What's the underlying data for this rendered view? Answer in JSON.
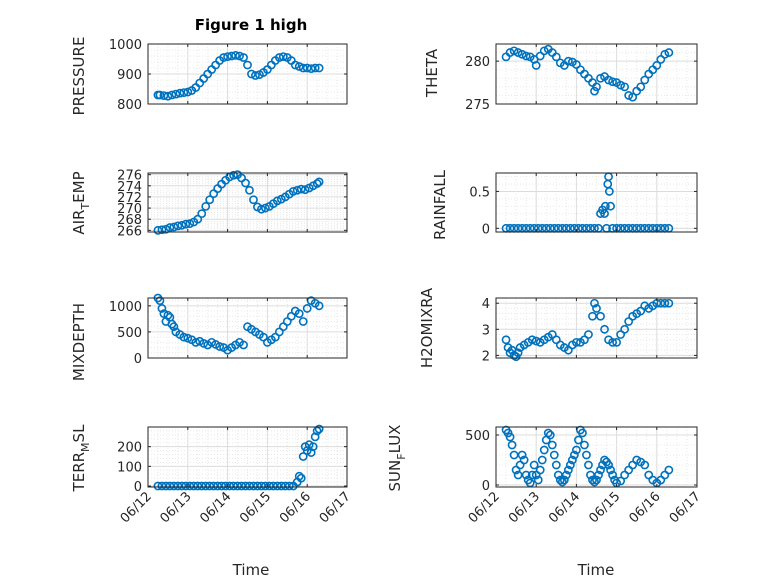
{
  "figure": {
    "title": "Figure 1 high",
    "xlabel": "Time",
    "date_ticks": [
      "06/12",
      "06/13",
      "06/14",
      "06/15",
      "06/16",
      "06/17"
    ],
    "marker_color": "#0072BD"
  },
  "chart_data": [
    {
      "type": "scatter",
      "title": "Figure 1 high",
      "ylabel": "PRESSURE",
      "ylim": [
        800,
        1000
      ],
      "yticks": [
        "800",
        "900",
        "1000"
      ],
      "x": [
        12.25,
        12.3,
        12.4,
        12.5,
        12.6,
        12.7,
        12.8,
        12.9,
        13.0,
        13.1,
        13.2,
        13.3,
        13.4,
        13.5,
        13.6,
        13.7,
        13.8,
        13.9,
        14.0,
        14.1,
        14.2,
        14.3,
        14.4,
        14.5,
        14.6,
        14.7,
        14.8,
        14.9,
        15.0,
        15.1,
        15.2,
        15.3,
        15.4,
        15.5,
        15.6,
        15.7,
        15.8,
        15.9,
        16.0,
        16.1,
        16.2,
        16.3
      ],
      "y": [
        830,
        830,
        828,
        826,
        830,
        833,
        836,
        838,
        840,
        845,
        855,
        870,
        885,
        900,
        915,
        930,
        945,
        955,
        958,
        960,
        962,
        960,
        955,
        930,
        900,
        895,
        898,
        905,
        915,
        930,
        945,
        955,
        958,
        955,
        945,
        930,
        925,
        920,
        920,
        918,
        920,
        920
      ]
    },
    {
      "type": "scatter",
      "ylabel": "THETA",
      "ylim": [
        275,
        282
      ],
      "yticks": [
        "275",
        "280"
      ],
      "x": [
        12.25,
        12.35,
        12.45,
        12.55,
        12.65,
        12.75,
        12.85,
        12.95,
        13.0,
        13.1,
        13.2,
        13.3,
        13.4,
        13.5,
        13.6,
        13.7,
        13.8,
        13.9,
        14.0,
        14.1,
        14.2,
        14.3,
        14.4,
        14.45,
        14.5,
        14.6,
        14.7,
        14.8,
        14.9,
        15.0,
        15.1,
        15.2,
        15.3,
        15.4,
        15.5,
        15.6,
        15.7,
        15.8,
        15.9,
        16.0,
        16.1,
        16.2,
        16.3
      ],
      "y": [
        280.5,
        281.0,
        281.2,
        281.0,
        280.8,
        280.6,
        280.5,
        280.2,
        279.5,
        280.6,
        281.2,
        281.4,
        281.0,
        280.5,
        279.8,
        279.5,
        280.0,
        279.9,
        279.6,
        279.0,
        278.5,
        278.0,
        277.5,
        276.5,
        277.0,
        278.0,
        278.2,
        277.8,
        277.6,
        277.5,
        277.2,
        277.0,
        276.0,
        275.8,
        276.5,
        277.0,
        277.8,
        278.5,
        279.0,
        279.5,
        280.2,
        280.8,
        281.0
      ]
    },
    {
      "type": "scatter",
      "ylabel": "AIR_TEMP",
      "ylabel_parts": [
        "AIR",
        "T",
        "EMP"
      ],
      "ylim": [
        265.7,
        276.3
      ],
      "yticks": [
        "266",
        "268",
        "270",
        "272",
        "274",
        "276"
      ],
      "x": [
        12.25,
        12.35,
        12.45,
        12.55,
        12.65,
        12.75,
        12.85,
        12.95,
        13.05,
        13.15,
        13.25,
        13.35,
        13.45,
        13.55,
        13.65,
        13.75,
        13.85,
        13.95,
        14.05,
        14.15,
        14.25,
        14.35,
        14.45,
        14.55,
        14.65,
        14.75,
        14.85,
        14.95,
        15.05,
        15.15,
        15.25,
        15.35,
        15.45,
        15.55,
        15.65,
        15.75,
        15.85,
        15.95,
        16.05,
        16.15,
        16.25,
        16.3
      ],
      "y": [
        266.0,
        266.1,
        266.2,
        266.5,
        266.6,
        266.8,
        266.9,
        267.1,
        267.2,
        267.5,
        268.0,
        269.0,
        270.3,
        271.5,
        272.6,
        273.5,
        274.3,
        275.0,
        275.6,
        275.9,
        276.0,
        275.4,
        274.5,
        273.2,
        271.5,
        270.2,
        269.8,
        270.0,
        270.3,
        270.8,
        271.3,
        271.6,
        272.0,
        272.5,
        273.0,
        273.2,
        273.4,
        273.3,
        273.6,
        274.0,
        274.4,
        274.7
      ]
    },
    {
      "type": "scatter",
      "ylabel": "RAINFALL",
      "ylim": [
        -0.05,
        0.75
      ],
      "yticks": [
        "0",
        "0.5"
      ],
      "x": [
        12.25,
        12.35,
        12.45,
        12.55,
        12.65,
        12.75,
        12.85,
        12.95,
        13.05,
        13.15,
        13.25,
        13.35,
        13.45,
        13.55,
        13.65,
        13.75,
        13.85,
        13.95,
        14.05,
        14.15,
        14.25,
        14.35,
        14.45,
        14.55,
        14.6,
        14.65,
        14.7,
        14.72,
        14.75,
        14.78,
        14.8,
        14.82,
        14.85,
        14.9,
        15.0,
        15.1,
        15.2,
        15.3,
        15.4,
        15.5,
        15.6,
        15.7,
        15.8,
        15.9,
        16.0,
        16.1,
        16.2,
        16.3
      ],
      "y": [
        0,
        0,
        0,
        0,
        0,
        0,
        0,
        0,
        0,
        0,
        0,
        0,
        0,
        0,
        0,
        0,
        0,
        0,
        0,
        0,
        0,
        0,
        0,
        0,
        0.2,
        0.25,
        0.2,
        0.3,
        0.0,
        0.6,
        0.7,
        0.5,
        0.3,
        0,
        0,
        0,
        0,
        0,
        0,
        0,
        0,
        0,
        0,
        0,
        0,
        0,
        0,
        0
      ]
    },
    {
      "type": "scatter",
      "ylabel": "MIXDEPTH",
      "ylim": [
        0,
        1150
      ],
      "yticks": [
        "0",
        "500",
        "1000"
      ],
      "x": [
        12.25,
        12.3,
        12.35,
        12.4,
        12.45,
        12.5,
        12.55,
        12.6,
        12.65,
        12.7,
        12.8,
        12.9,
        13.0,
        13.1,
        13.2,
        13.3,
        13.4,
        13.5,
        13.6,
        13.7,
        13.8,
        13.9,
        14.0,
        14.1,
        14.2,
        14.3,
        14.4,
        14.5,
        14.6,
        14.7,
        14.8,
        14.9,
        15.0,
        15.1,
        15.2,
        15.3,
        15.4,
        15.5,
        15.6,
        15.7,
        15.8,
        15.9,
        16.0,
        16.1,
        16.2,
        16.3
      ],
      "y": [
        1150,
        1100,
        950,
        850,
        700,
        820,
        780,
        650,
        600,
        500,
        450,
        400,
        380,
        350,
        300,
        320,
        280,
        250,
        300,
        260,
        220,
        200,
        150,
        200,
        250,
        300,
        250,
        600,
        550,
        500,
        450,
        400,
        300,
        350,
        400,
        500,
        600,
        700,
        800,
        900,
        850,
        700,
        950,
        1100,
        1050,
        1000
      ]
    },
    {
      "type": "scatter",
      "ylabel": "H2OMIXRA",
      "ylim": [
        1.9,
        4.2
      ],
      "yticks": [
        "2",
        "3",
        "4"
      ],
      "x": [
        12.25,
        12.3,
        12.35,
        12.4,
        12.45,
        12.5,
        12.55,
        12.6,
        12.7,
        12.8,
        12.9,
        13.0,
        13.1,
        13.2,
        13.3,
        13.4,
        13.5,
        13.6,
        13.7,
        13.8,
        13.9,
        14.0,
        14.1,
        14.2,
        14.3,
        14.4,
        14.45,
        14.5,
        14.6,
        14.7,
        14.8,
        14.9,
        15.0,
        15.1,
        15.2,
        15.3,
        15.4,
        15.5,
        15.6,
        15.7,
        15.8,
        15.9,
        16.0,
        16.1,
        16.2,
        16.3
      ],
      "y": [
        2.6,
        2.3,
        2.1,
        2.2,
        2.0,
        1.95,
        2.1,
        2.3,
        2.4,
        2.5,
        2.6,
        2.55,
        2.5,
        2.6,
        2.7,
        2.8,
        2.6,
        2.4,
        2.3,
        2.2,
        2.4,
        2.5,
        2.5,
        2.6,
        2.8,
        3.5,
        4.0,
        3.8,
        3.5,
        3.0,
        2.6,
        2.5,
        2.5,
        2.8,
        3.0,
        3.3,
        3.5,
        3.6,
        3.7,
        3.9,
        3.8,
        3.9,
        4.0,
        4.0,
        4.0,
        4.0
      ]
    },
    {
      "type": "scatter",
      "ylabel": "TERR_MSL",
      "ylabel_parts": [
        "TERR",
        "M",
        "SL"
      ],
      "ylim": [
        -5,
        300
      ],
      "yticks": [
        "0",
        "100",
        "200"
      ],
      "x": [
        12.25,
        12.35,
        12.45,
        12.55,
        12.65,
        12.75,
        12.85,
        12.95,
        13.05,
        13.15,
        13.25,
        13.35,
        13.45,
        13.55,
        13.65,
        13.75,
        13.85,
        13.95,
        14.05,
        14.15,
        14.25,
        14.35,
        14.45,
        14.55,
        14.65,
        14.75,
        14.85,
        14.95,
        15.05,
        15.15,
        15.25,
        15.35,
        15.45,
        15.55,
        15.65,
        15.75,
        15.8,
        15.85,
        15.9,
        15.95,
        16.0,
        16.05,
        16.1,
        16.15,
        16.2,
        16.25,
        16.3
      ],
      "y": [
        0,
        0,
        0,
        0,
        0,
        0,
        0,
        0,
        0,
        0,
        0,
        0,
        0,
        0,
        0,
        0,
        0,
        0,
        0,
        0,
        0,
        0,
        0,
        0,
        0,
        0,
        0,
        0,
        0,
        0,
        0,
        0,
        0,
        0,
        0,
        20,
        50,
        40,
        150,
        200,
        180,
        210,
        170,
        200,
        250,
        280,
        290
      ]
    },
    {
      "type": "scatter",
      "ylabel": "SUN_FLUX",
      "ylabel_parts": [
        "SUN",
        "F",
        "LUX"
      ],
      "ylim": [
        -20,
        580
      ],
      "yticks": [
        "0",
        "500"
      ],
      "x": [
        12.25,
        12.3,
        12.35,
        12.4,
        12.45,
        12.5,
        12.55,
        12.6,
        12.65,
        12.7,
        12.75,
        12.8,
        12.85,
        12.9,
        12.95,
        13.0,
        13.05,
        13.1,
        13.15,
        13.2,
        13.25,
        13.3,
        13.35,
        13.4,
        13.45,
        13.5,
        13.55,
        13.6,
        13.65,
        13.7,
        13.75,
        13.8,
        13.85,
        13.9,
        13.95,
        14.0,
        14.05,
        14.1,
        14.15,
        14.2,
        14.25,
        14.3,
        14.35,
        14.4,
        14.45,
        14.5,
        14.55,
        14.6,
        14.65,
        14.7,
        14.75,
        14.8,
        14.85,
        14.9,
        14.95,
        15.0,
        15.1,
        15.2,
        15.3,
        15.4,
        15.5,
        15.6,
        15.7,
        15.8,
        15.9,
        16.0,
        16.1,
        16.2,
        16.3
      ],
      "y": [
        550,
        520,
        480,
        400,
        300,
        150,
        100,
        200,
        300,
        250,
        100,
        50,
        20,
        100,
        200,
        100,
        50,
        150,
        250,
        350,
        450,
        520,
        500,
        400,
        300,
        200,
        100,
        50,
        30,
        50,
        100,
        150,
        200,
        250,
        300,
        350,
        450,
        550,
        520,
        400,
        300,
        200,
        100,
        50,
        30,
        50,
        100,
        150,
        200,
        250,
        230,
        200,
        150,
        100,
        50,
        20,
        40,
        100,
        150,
        200,
        250,
        230,
        200,
        100,
        50,
        20,
        50,
        100,
        150
      ]
    }
  ]
}
